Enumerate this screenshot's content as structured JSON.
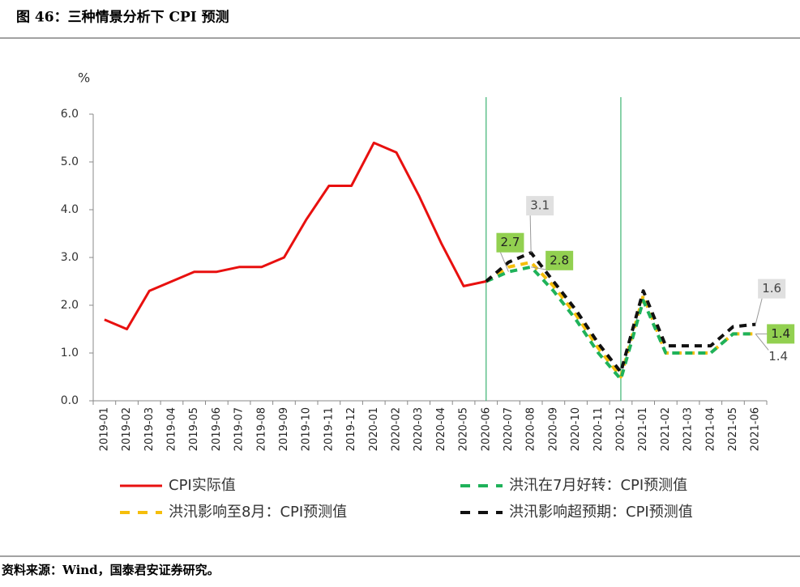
{
  "chart_data": {
    "type": "line",
    "title": "图 46：三种情景分析下 CPI 预测",
    "y_label": "%",
    "source": "资料来源：Wind，国泰君安证券研究。",
    "categories": [
      "2019-01",
      "2019-02",
      "2019-03",
      "2019-04",
      "2019-05",
      "2019-06",
      "2019-07",
      "2019-08",
      "2019-09",
      "2019-10",
      "2019-11",
      "2019-12",
      "2020-01",
      "2020-02",
      "2020-03",
      "2020-04",
      "2020-05",
      "2020-06",
      "2020-07",
      "2020-08",
      "2020-09",
      "2020-10",
      "2020-11",
      "2020-12",
      "2021-01",
      "2021-02",
      "2021-03",
      "2021-04",
      "2021-05",
      "2021-06"
    ],
    "vlines": [
      "2020-06",
      "2020-12"
    ],
    "ylim": [
      0,
      6
    ],
    "yticks": [
      {
        "value": 0,
        "label": "0.0"
      },
      {
        "value": 1,
        "label": "1.0"
      },
      {
        "value": 2,
        "label": "2.0"
      },
      {
        "value": 3,
        "label": "3.0"
      },
      {
        "value": 4,
        "label": "4.0"
      },
      {
        "value": 5,
        "label": "5.0"
      },
      {
        "value": 6,
        "label": "6.0"
      }
    ],
    "series": [
      {
        "name": "CPI实际值",
        "color": "#e8100f",
        "dashed": false,
        "values": [
          1.7,
          1.5,
          2.3,
          2.5,
          2.7,
          2.7,
          2.8,
          2.8,
          3.0,
          3.8,
          4.5,
          4.5,
          5.4,
          5.2,
          4.3,
          3.3,
          2.4,
          2.5,
          null,
          null,
          null,
          null,
          null,
          null,
          null,
          null,
          null,
          null,
          null,
          null
        ]
      },
      {
        "name": "洪汛在7月好转：CPI预测值",
        "color": "#1fb25a",
        "dashed": true,
        "values": [
          null,
          null,
          null,
          null,
          null,
          null,
          null,
          null,
          null,
          null,
          null,
          null,
          null,
          null,
          null,
          null,
          null,
          2.5,
          2.7,
          2.8,
          2.3,
          1.7,
          1.0,
          0.45,
          2.1,
          1.0,
          1.0,
          1.0,
          1.4,
          1.4
        ],
        "value_labels": [
          null,
          null,
          null,
          null,
          null,
          null,
          null,
          null,
          null,
          null,
          null,
          null,
          null,
          null,
          null,
          null,
          null,
          null,
          "2.7",
          "2.8",
          null,
          null,
          null,
          null,
          null,
          null,
          null,
          null,
          null,
          "1.4"
        ]
      },
      {
        "name": "洪汛影响至8月：CPI预测值",
        "color": "#f5be0b",
        "dashed": true,
        "values": [
          null,
          null,
          null,
          null,
          null,
          null,
          null,
          null,
          null,
          null,
          null,
          null,
          null,
          null,
          null,
          null,
          null,
          2.5,
          2.8,
          2.9,
          2.4,
          1.8,
          1.1,
          0.5,
          2.2,
          1.0,
          1.0,
          1.0,
          1.4,
          1.4
        ],
        "value_labels": [
          null,
          null,
          null,
          null,
          null,
          null,
          null,
          null,
          null,
          null,
          null,
          null,
          null,
          null,
          null,
          null,
          null,
          null,
          null,
          null,
          null,
          null,
          null,
          null,
          null,
          null,
          null,
          null,
          null,
          "1.4"
        ]
      },
      {
        "name": "洪汛影响超预期：CPI预测值",
        "color": "#111111",
        "dashed": true,
        "values": [
          null,
          null,
          null,
          null,
          null,
          null,
          null,
          null,
          null,
          null,
          null,
          null,
          null,
          null,
          null,
          null,
          null,
          2.5,
          2.9,
          3.1,
          2.5,
          1.9,
          1.2,
          0.6,
          2.3,
          1.15,
          1.15,
          1.15,
          1.55,
          1.6
        ],
        "value_labels": [
          null,
          null,
          null,
          null,
          null,
          null,
          null,
          null,
          null,
          null,
          null,
          null,
          null,
          null,
          null,
          null,
          null,
          null,
          null,
          "3.1",
          null,
          null,
          null,
          null,
          null,
          null,
          null,
          null,
          null,
          "1.6"
        ]
      }
    ]
  }
}
